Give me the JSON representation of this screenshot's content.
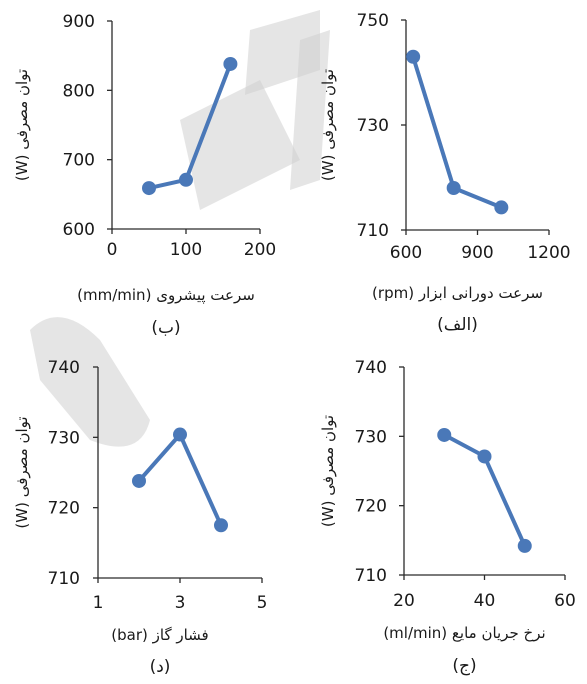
{
  "chart_data": [
    {
      "type": "line",
      "panel_label": "(ب)",
      "xlabel": "سرعت پیشروی (mm/min)",
      "ylabel": "توان مصرفی (W)",
      "xlim": [
        0,
        200
      ],
      "ylim": [
        600,
        900
      ],
      "xticks": [
        0,
        100,
        200
      ],
      "yticks": [
        600,
        700,
        800,
        900
      ],
      "x": [
        50,
        100,
        160
      ],
      "y": [
        659,
        671,
        838
      ]
    },
    {
      "type": "line",
      "panel_label": "(الف)",
      "xlabel": "سرعت دورانی ابزار (rpm)",
      "ylabel": "توان مصرفی (W)",
      "xlim": [
        600,
        1200
      ],
      "ylim": [
        710,
        750
      ],
      "xticks": [
        600,
        900,
        1200
      ],
      "yticks": [
        710,
        730,
        750
      ],
      "x": [
        630,
        800,
        1000
      ],
      "y": [
        743,
        718,
        714.3
      ]
    },
    {
      "type": "line",
      "panel_label": "(د)",
      "xlabel": "فشار گاز (bar)",
      "ylabel": "توان مصرفی (W)",
      "xlim": [
        1,
        5
      ],
      "ylim": [
        710,
        740
      ],
      "xticks": [
        1,
        3,
        5
      ],
      "yticks": [
        710,
        720,
        730,
        740
      ],
      "x": [
        2,
        3,
        4
      ],
      "y": [
        723.8,
        730.4,
        717.5
      ]
    },
    {
      "type": "line",
      "panel_label": "(ج)",
      "xlabel": "نرخ جریان مایع (ml/min)",
      "ylabel": "توان مصرفی (W)",
      "xlim": [
        20,
        60
      ],
      "ylim": [
        710,
        740
      ],
      "xticks": [
        20,
        40,
        60
      ],
      "yticks": [
        710,
        720,
        730,
        740
      ],
      "x": [
        30,
        40,
        50
      ],
      "y": [
        730.2,
        727.1,
        714.2
      ]
    }
  ],
  "colors": {
    "series": "#4a78b8",
    "axis": "#2b2b2b",
    "watermark": "#d0d0d0"
  }
}
